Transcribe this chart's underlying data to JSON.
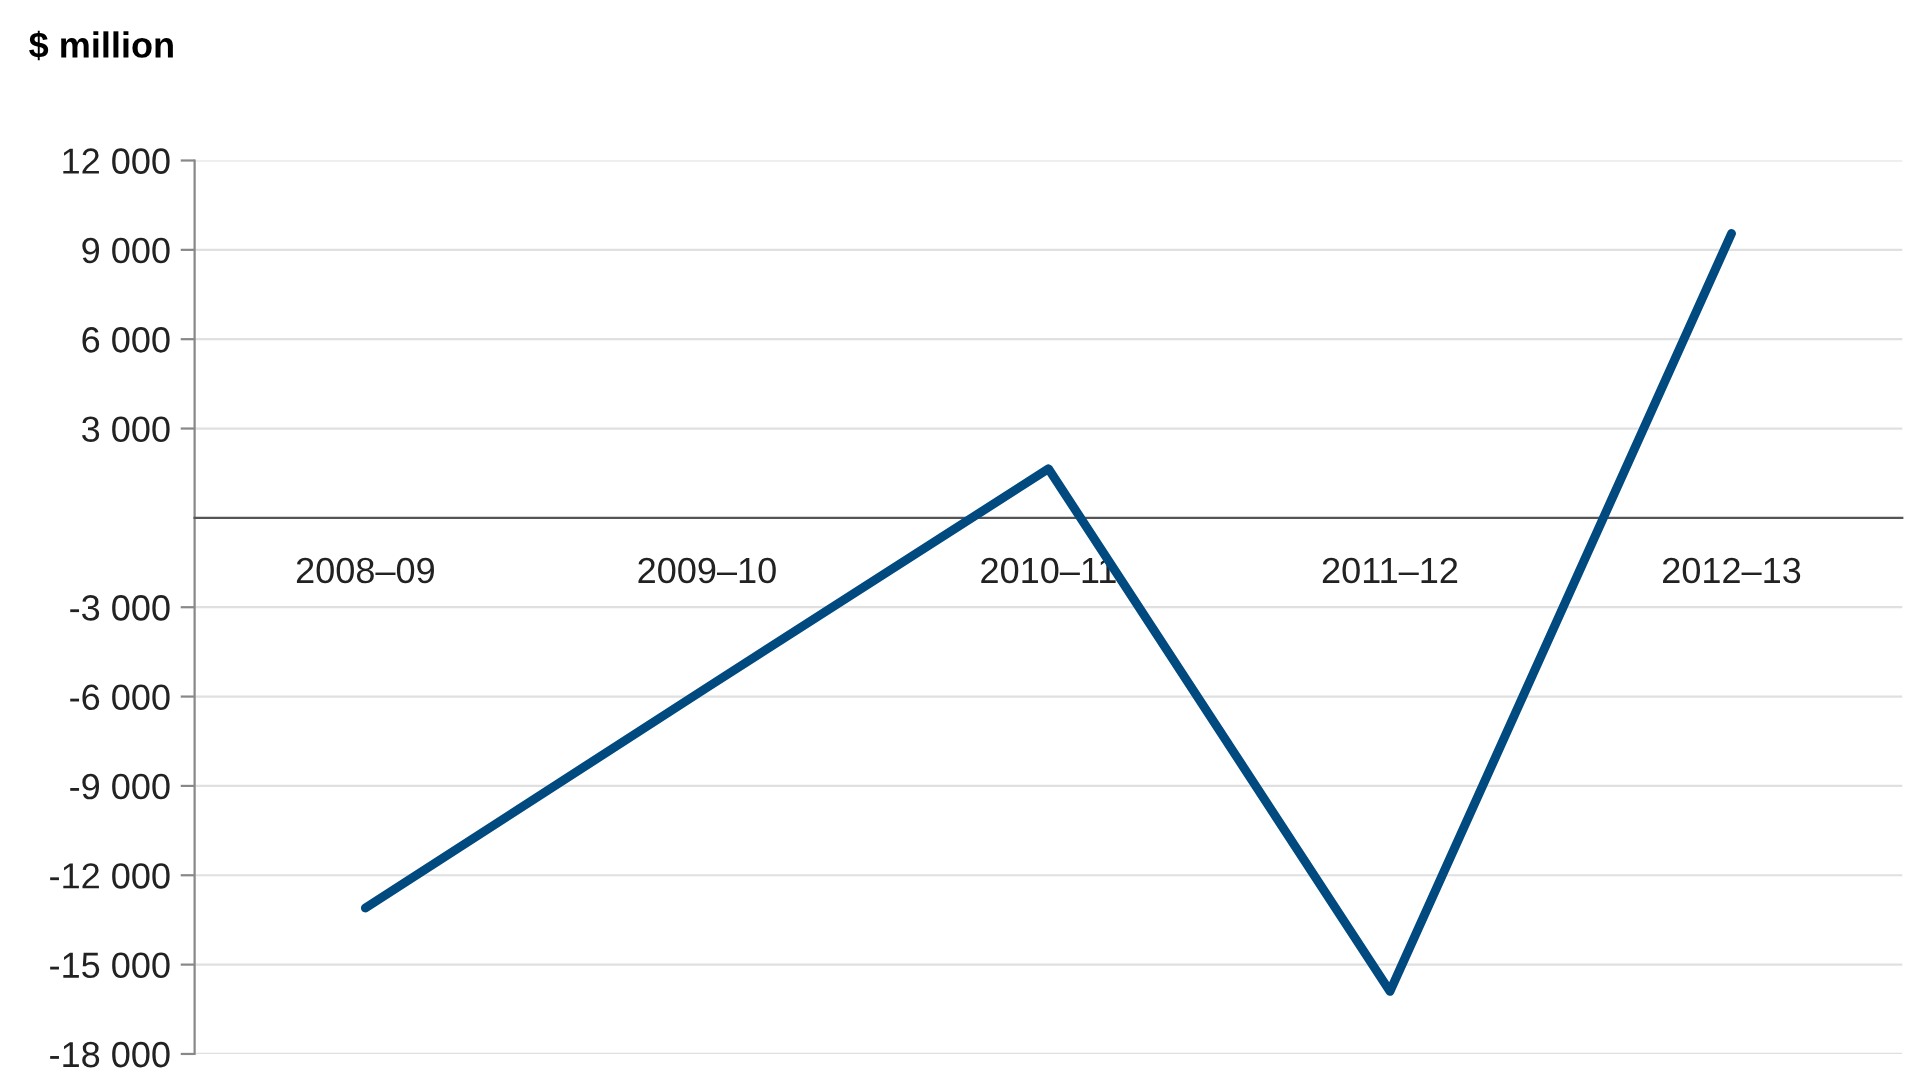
{
  "chart_data": {
    "type": "line",
    "ylabel": "$ million",
    "categories": [
      "2008–09",
      "2009–10",
      "2010–11",
      "2011–12",
      "2012–13"
    ],
    "series": [
      {
        "color": "#004a80",
        "values": [
          -13100,
          -5700,
          1650,
          -15900,
          9550
        ]
      }
    ],
    "ylim": [
      -18000,
      12000
    ],
    "yticks": [
      {
        "value": -18000,
        "label": "-18 000"
      },
      {
        "value": -15000,
        "label": "-15 000"
      },
      {
        "value": -12000,
        "label": "-12 000"
      },
      {
        "value": -9000,
        "label": "-9 000"
      },
      {
        "value": -6000,
        "label": "-6 000"
      },
      {
        "value": -3000,
        "label": "-3 000"
      },
      {
        "value": 3000,
        "label": "3 000"
      },
      {
        "value": 6000,
        "label": "6 000"
      },
      {
        "value": 9000,
        "label": "9 000"
      },
      {
        "value": 12000,
        "label": "12 000"
      }
    ],
    "grid": "y",
    "marker": "none",
    "line_style": "solid"
  }
}
